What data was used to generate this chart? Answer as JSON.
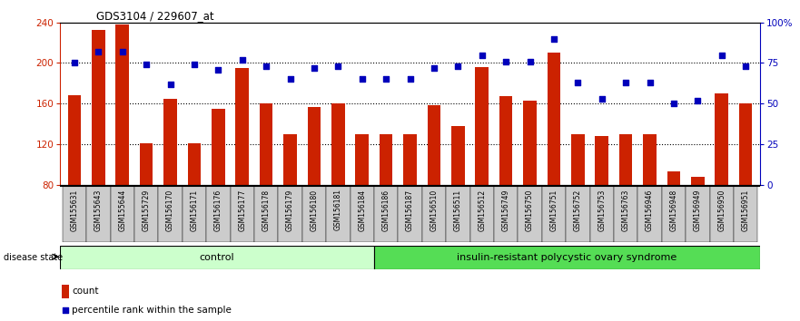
{
  "title": "GDS3104 / 229607_at",
  "categories": [
    "GSM155631",
    "GSM155643",
    "GSM155644",
    "GSM155729",
    "GSM156170",
    "GSM156171",
    "GSM156176",
    "GSM156177",
    "GSM156178",
    "GSM156179",
    "GSM156180",
    "GSM156181",
    "GSM156184",
    "GSM156186",
    "GSM156187",
    "GSM156510",
    "GSM156511",
    "GSM156512",
    "GSM156749",
    "GSM156750",
    "GSM156751",
    "GSM156752",
    "GSM156753",
    "GSM156763",
    "GSM156946",
    "GSM156948",
    "GSM156949",
    "GSM156950",
    "GSM156951"
  ],
  "bar_values": [
    168,
    233,
    238,
    121,
    165,
    121,
    155,
    195,
    160,
    130,
    157,
    160,
    130,
    130,
    130,
    158,
    138,
    196,
    167,
    163,
    210,
    130,
    128,
    130,
    130,
    93,
    88,
    170,
    160
  ],
  "dot_values_pct": [
    75,
    82,
    82,
    74,
    62,
    74,
    71,
    77,
    73,
    65,
    72,
    73,
    65,
    65,
    65,
    72,
    73,
    80,
    76,
    76,
    90,
    63,
    53,
    63,
    63,
    50,
    52,
    80,
    73
  ],
  "control_count": 13,
  "ylim_left": [
    80,
    240
  ],
  "ylim_right": [
    0,
    100
  ],
  "yticks_left": [
    80,
    120,
    160,
    200,
    240
  ],
  "yticks_right": [
    0,
    25,
    50,
    75,
    100
  ],
  "bar_color": "#CC2200",
  "dot_color": "#0000BB",
  "control_label": "control",
  "disease_label": "insulin-resistant polycystic ovary syndrome",
  "disease_state_label": "disease state",
  "legend_bar": "count",
  "legend_dot": "percentile rank within the sample",
  "control_bg": "#CCFFCC",
  "disease_bg": "#55DD55",
  "xlabel_bg": "#CCCCCC"
}
